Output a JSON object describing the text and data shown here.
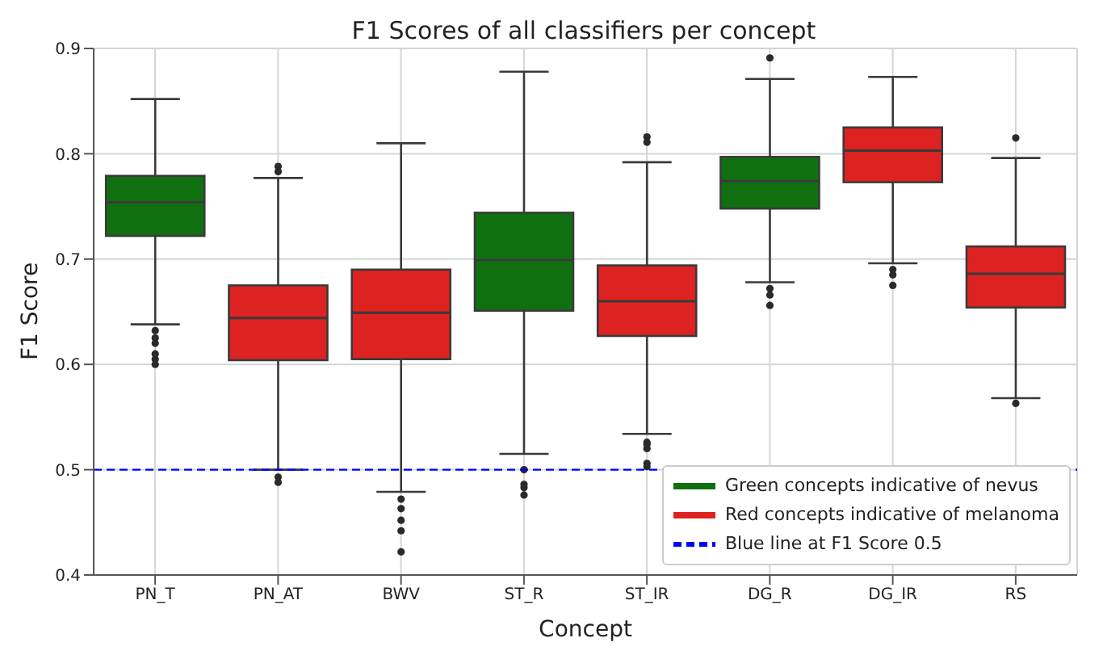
{
  "chart_data": {
    "type": "box",
    "title": "F1 Scores of all classifiers per concept",
    "xlabel": "Concept",
    "ylabel": "F1 Score",
    "categories": [
      "PN_T",
      "PN_AT",
      "BWV",
      "ST_R",
      "ST_IR",
      "DG_R",
      "DG_IR",
      "RS"
    ],
    "series": [
      {
        "name": "Green concepts indicative of nevus",
        "color": "#107010",
        "boxes": [
          {
            "low": 0.638,
            "q1": 0.722,
            "median": 0.754,
            "q3": 0.779,
            "high": 0.852,
            "outliers": [
              0.632,
              0.625,
              0.62,
              0.61,
              0.605,
              0.6
            ]
          },
          null,
          null,
          {
            "low": 0.515,
            "q1": 0.651,
            "median": 0.699,
            "q3": 0.744,
            "high": 0.878,
            "outliers": [
              0.5,
              0.486,
              0.483,
              0.476
            ]
          },
          null,
          {
            "low": 0.678,
            "q1": 0.748,
            "median": 0.774,
            "q3": 0.797,
            "high": 0.871,
            "outliers": [
              0.891,
              0.672,
              0.666,
              0.656
            ]
          },
          null,
          null
        ]
      },
      {
        "name": "Red concepts indicative of melanoma",
        "color": "#dd2222",
        "boxes": [
          null,
          {
            "low": 0.5,
            "q1": 0.604,
            "median": 0.644,
            "q3": 0.675,
            "high": 0.777,
            "outliers": [
              0.788,
              0.783,
              0.493,
              0.488
            ]
          },
          {
            "low": 0.479,
            "q1": 0.605,
            "median": 0.649,
            "q3": 0.69,
            "high": 0.81,
            "outliers": [
              0.472,
              0.463,
              0.452,
              0.442,
              0.422
            ]
          },
          null,
          {
            "low": 0.534,
            "q1": 0.627,
            "median": 0.66,
            "q3": 0.694,
            "high": 0.792,
            "outliers": [
              0.816,
              0.811,
              0.526,
              0.524,
              0.52,
              0.506,
              0.503
            ]
          },
          null,
          {
            "low": 0.696,
            "q1": 0.773,
            "median": 0.803,
            "q3": 0.825,
            "high": 0.873,
            "outliers": [
              0.69,
              0.685,
              0.675
            ]
          },
          {
            "low": 0.568,
            "q1": 0.654,
            "median": 0.686,
            "q3": 0.712,
            "high": 0.796,
            "outliers": [
              0.815,
              0.563
            ]
          }
        ]
      }
    ],
    "ylim": [
      0.4,
      0.9
    ],
    "yticks": [
      0.4,
      0.5,
      0.6,
      0.7,
      0.8,
      0.9
    ],
    "ref_lines": [
      {
        "axis": "y",
        "value": 0.5,
        "label": "Blue line at F1 Score 0.5",
        "color": "#0000ff",
        "line_style": "dashed"
      }
    ],
    "grid": true,
    "legend": "bottom right"
  }
}
